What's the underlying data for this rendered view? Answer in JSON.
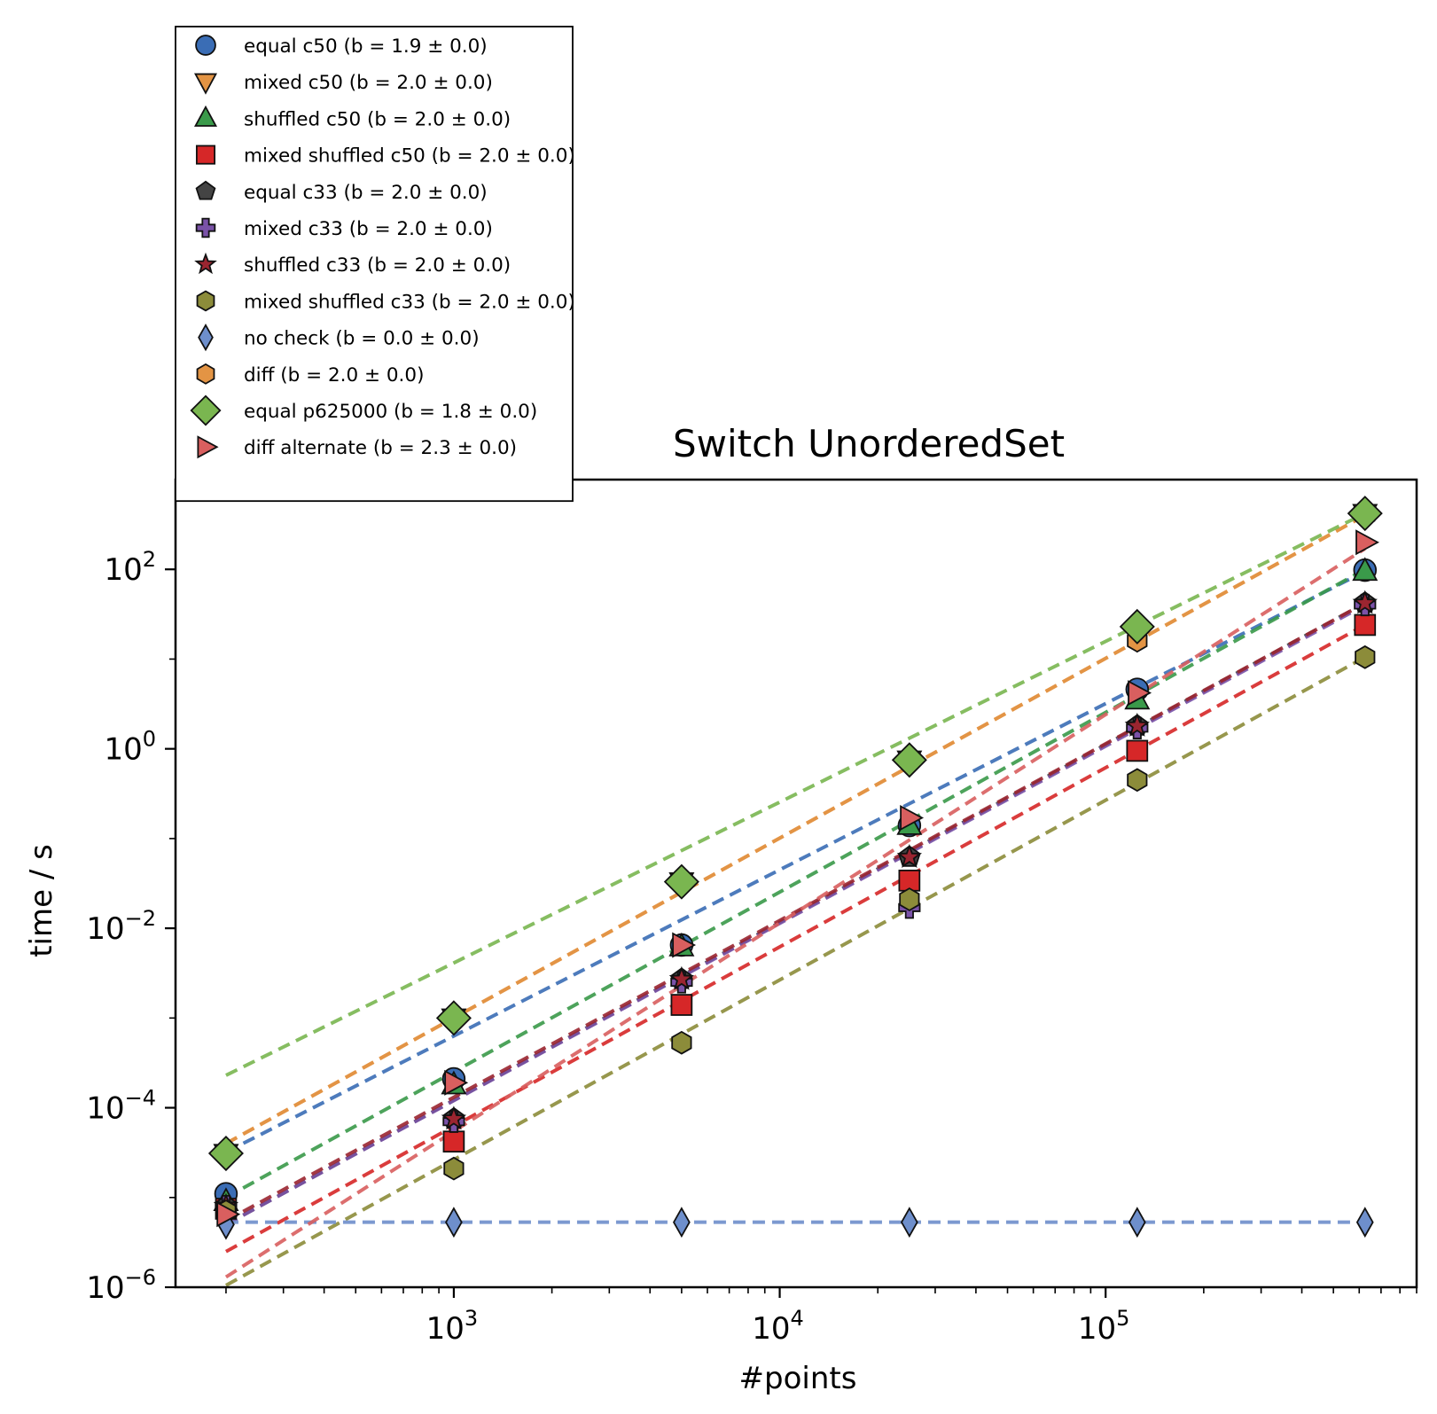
{
  "chart_data": {
    "type": "scatter",
    "title": "Switch UnorderedSet",
    "xlabel": "#points",
    "ylabel": "time / s",
    "xscale": "log",
    "yscale": "log",
    "xlim": [
      140,
      900000
    ],
    "ylim": [
      1e-06,
      1000
    ],
    "x_ticks": [
      {
        "value": 1000,
        "base": "10",
        "exp": "3"
      },
      {
        "value": 10000,
        "base": "10",
        "exp": "4"
      },
      {
        "value": 100000,
        "base": "10",
        "exp": "5"
      }
    ],
    "y_ticks": [
      {
        "value": 1e-06,
        "base": "10",
        "exp": "−6"
      },
      {
        "value": 0.0001,
        "base": "10",
        "exp": "−4"
      },
      {
        "value": 0.01,
        "base": "10",
        "exp": "−2"
      },
      {
        "value": 1,
        "base": "10",
        "exp": "0"
      },
      {
        "value": 100,
        "base": "10",
        "exp": "2"
      }
    ],
    "x": [
      200,
      1000,
      5000,
      25000,
      125000,
      625000
    ],
    "legend_position": "above-left",
    "series": [
      {
        "name": "equal c50",
        "fit_label": "(b = 1.9 ± 0.0)",
        "marker": "circle",
        "color": "#3a6db5",
        "values": [
          1.1e-05,
          0.00021,
          0.0065,
          0.14,
          4.6,
          98
        ],
        "fit": [
          3.2e-05,
          95
        ]
      },
      {
        "name": "mixed c50",
        "fit_label": "(b = 2.0 ± 0.0)",
        "marker": "triangle-down",
        "color": "#e39444",
        "values": [
          3.1e-05,
          0.001,
          0.033,
          0.75,
          17,
          420
        ],
        "fit": [
          4e-05,
          400
        ]
      },
      {
        "name": "shuffled c50",
        "fit_label": "(b = 2.0 ± 0.0)",
        "marker": "triangle-up",
        "color": "#3a9a4a",
        "values": [
          9e-06,
          0.00018,
          0.0062,
          0.14,
          3.5,
          95
        ],
        "fit": [
          1e-05,
          100
        ]
      },
      {
        "name": "mixed shuffled c50",
        "fit_label": "(b = 2.0 ± 0.0)",
        "marker": "square",
        "color": "#d62728",
        "values": [
          7.5e-06,
          4.2e-05,
          0.0014,
          0.034,
          0.95,
          24
        ],
        "fit": [
          2.5e-06,
          24
        ]
      },
      {
        "name": "equal c33",
        "fit_label": "(b = 2.0 ± 0.0)",
        "marker": "pentagon",
        "color": "#444444",
        "values": [
          8e-06,
          7.5e-05,
          0.0027,
          0.062,
          1.8,
          42
        ],
        "fit": [
          5e-06,
          42
        ]
      },
      {
        "name": "mixed c33",
        "fit_label": "(b = 2.0 ± 0.0)",
        "marker": "plus",
        "color": "#7a52a8",
        "values": [
          8e-06,
          7e-05,
          0.0025,
          0.017,
          1.7,
          40
        ],
        "fit": [
          5e-06,
          40
        ]
      },
      {
        "name": "shuffled c33",
        "fit_label": "(b = 2.0 ± 0.0)",
        "marker": "star",
        "color": "#9b2530",
        "values": [
          8e-06,
          7.5e-05,
          0.0027,
          0.062,
          1.8,
          42
        ],
        "fit": [
          5.5e-06,
          42
        ]
      },
      {
        "name": "mixed shuffled c33",
        "fit_label": "(b = 2.0 ± 0.0)",
        "marker": "hexagon",
        "color": "#8c8c3a",
        "values": [
          7e-06,
          2.1e-05,
          0.00053,
          0.021,
          0.45,
          10.5
        ],
        "fit": [
          1.05e-06,
          10.5
        ]
      },
      {
        "name": "no check",
        "fit_label": "(b = 0.0 ± 0.0)",
        "marker": "thin-diamond",
        "color": "#6e8fcc",
        "values": [
          5e-06,
          5.3e-06,
          5.3e-06,
          5.3e-06,
          5.3e-06,
          5.3e-06
        ],
        "fit": [
          5.3e-06,
          5.3e-06
        ]
      },
      {
        "name": "diff",
        "fit_label": "(b = 2.0 ± 0.0)",
        "marker": "hexagon",
        "color": "#e39444",
        "values": [
          3.1e-05,
          0.001,
          0.033,
          0.75,
          16,
          400
        ],
        "fit": [
          4e-05,
          400
        ]
      },
      {
        "name": "equal p625000",
        "fit_label": "(b = 1.8 ± 0.0)",
        "marker": "diamond",
        "color": "#7ab650",
        "values": [
          3.1e-05,
          0.001,
          0.033,
          0.75,
          23,
          420
        ],
        "fit": [
          0.00023,
          420
        ]
      },
      {
        "name": "diff alternate",
        "fit_label": "(b = 2.3 ± 0.0)",
        "marker": "triangle-right",
        "color": "#d95f5f",
        "values": [
          6.5e-06,
          0.00019,
          0.0065,
          0.17,
          4.2,
          200
        ],
        "fit": [
          1.3e-06,
          170
        ]
      }
    ]
  }
}
